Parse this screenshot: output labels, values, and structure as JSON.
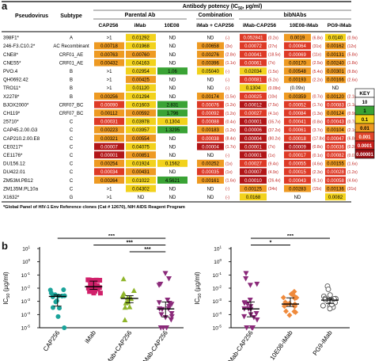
{
  "panel_a": {
    "label": "a",
    "header": {
      "pseudovirus": "Pseudovirus",
      "subtype": "Subtype",
      "potency": "Antibody potency (IC",
      "potency_sub": "50",
      "potency_end": ", µg/ml)",
      "group_parental": "Parental Ab",
      "group_combination": "Combination",
      "group_bibnabs": "bibNAbs",
      "cols": [
        "CAP256",
        "iMab",
        "10E08",
        "iMab + CAP256",
        "iMab-CAP256",
        "10E08-iMab",
        "PG9-iMab"
      ]
    },
    "rows": [
      {
        "virus": "398F1*",
        "subtype": "A",
        "v": [
          ">1",
          "0.01292",
          "ND",
          "ND",
          "0.052841",
          "0.0019",
          "0.0140"
        ],
        "f": [
          "",
          "",
          "",
          "(-)",
          "(0.2x)",
          "(6.8x)",
          "(0.9x)"
        ],
        "c": [
          "w",
          "y",
          "w",
          "w",
          "r",
          "o",
          "y"
        ]
      },
      {
        "virus": "246-F3.C10.2*",
        "subtype": "AC Recombinant",
        "v": [
          "0.00718",
          "0.01968",
          "ND",
          "0.00658",
          "0.00072",
          "0.00064",
          "0.00162"
        ],
        "f": [
          "",
          "",
          "",
          "(3x)",
          "(27x)",
          "(31x)",
          "(12x)"
        ],
        "c": [
          "o",
          "y",
          "w",
          "o",
          "r",
          "r",
          "o"
        ]
      },
      {
        "virus": "CNE8*",
        "subtype": "CRF01_AE",
        "v": [
          "0.00763",
          "0.00760",
          "ND",
          "0.00276",
          "0.00041",
          "0.00069",
          "0.00131"
        ],
        "f": [
          "",
          "",
          "",
          "(2.8x)",
          "(18.5x)",
          "(11x)",
          "(5.8x)"
        ],
        "c": [
          "o",
          "o",
          "w",
          "o",
          "r",
          "r",
          "o"
        ]
      },
      {
        "virus": "CNE55*",
        "subtype": "CRF01_AE",
        "v": [
          "0.00432",
          "0.04163",
          "ND",
          "0.00396",
          "0.00061",
          "0.00170",
          "0.00240"
        ],
        "f": [
          "",
          "",
          "",
          "(1.1x)",
          "(7x)",
          "(2.5x)",
          "(1.8x)"
        ],
        "c": [
          "o",
          "y",
          "w",
          "o",
          "r",
          "o",
          "o"
        ]
      },
      {
        "virus": "PVO.4",
        "subtype": "B",
        "v": [
          ">1",
          "0.02954",
          "1.06",
          "0.05040",
          "0.02034",
          "0.00548",
          "0.00301"
        ],
        "f": [
          "",
          "",
          "",
          "(-)",
          "(1.5x)",
          "(5.4x)",
          "(9.8x)"
        ],
        "c": [
          "w",
          "y",
          "g",
          "y",
          "y",
          "o",
          "o"
        ]
      },
      {
        "virus": "QH0692.42",
        "subtype": "B",
        "v": [
          ">1",
          "0.00425",
          "ND",
          "ND",
          "0.00081",
          "0.00193",
          "0.00166"
        ],
        "f": [
          "",
          "",
          "",
          "(-)",
          "(5.2x)",
          "(2.2x)",
          "(2.6x)"
        ],
        "c": [
          "w",
          "o",
          "w",
          "w",
          "r",
          "o",
          "o"
        ]
      },
      {
        "virus": "TRO11*",
        "subtype": "B",
        "v": [
          ">1",
          "0.01120",
          "ND",
          "ND",
          "0.1304",
          "(0.09x)",
          "ND"
        ],
        "f": [
          "",
          "",
          "",
          "(-)",
          "(0.09x)",
          "",
          ""
        ],
        "c": [
          "w",
          "y",
          "w",
          "w",
          "y",
          "w",
          "w"
        ]
      },
      {
        "virus": "X2278*",
        "subtype": "B",
        "v": [
          "0.00256",
          "0.01294",
          "ND",
          "0.00174",
          "0.00025",
          "0.00359",
          "0.00120"
        ],
        "f": [
          "",
          "",
          "",
          "(1.5x)",
          "(10x)",
          "(0.7x)",
          "(2.1x)"
        ],
        "c": [
          "o",
          "y",
          "w",
          "o",
          "r",
          "o",
          "o"
        ]
      },
      {
        "virus": "BJOX2000*",
        "subtype": "CRF07_BC",
        "v": [
          "0.00090",
          "0.01603",
          "2.831",
          "0.00076",
          "0.00012",
          "0.00052",
          "0.00083"
        ],
        "f": [
          "",
          "",
          "",
          "(1.2x)",
          "(7.5x)",
          "(1.7x)",
          "(1.1x)"
        ],
        "c": [
          "r",
          "y",
          "g",
          "r",
          "dr",
          "r",
          "r"
        ]
      },
      {
        "virus": "CH119*",
        "subtype": "CRF07_BC",
        "v": [
          "0.00112",
          "0.00592",
          "1.796",
          "0.00092",
          "0.00027",
          "0.00084",
          "0.00124"
        ],
        "f": [
          "",
          "",
          "",
          "(1.2x)",
          "(4.1x)",
          "(1.3x)",
          "(0.9x)"
        ],
        "c": [
          "o",
          "o",
          "g",
          "r",
          "r",
          "r",
          "o"
        ]
      },
      {
        "virus": "25710*",
        "subtype": "C",
        "v": [
          "0.00031",
          "0.03978",
          "0.1304",
          "0.00088",
          "0.00001",
          "0.00041",
          "0.00043"
        ],
        "f": [
          "",
          "",
          "",
          "(0.4x)",
          "(35.7x)",
          "(0.8x)",
          "(0.7x)"
        ],
        "c": [
          "r",
          "y",
          "y",
          "r",
          "dr",
          "r",
          "r"
        ]
      },
      {
        "virus": "CAP45.2.00.G3",
        "subtype": "C",
        "v": [
          "0.00223",
          "0.03957",
          "1.3295",
          "0.00183",
          "0.00006",
          "0.00061",
          "0.00104"
        ],
        "f": [
          "",
          "",
          "",
          "(1.2x)",
          "(37.2x)",
          "(3.7x)",
          "(2.1x)"
        ],
        "c": [
          "o",
          "y",
          "g",
          "o",
          "dr",
          "r",
          "o"
        ]
      },
      {
        "virus": "CAP210.2.00.E8",
        "subtype": "C",
        "v": [
          "0.00321",
          "0.00554",
          "ND",
          "0.00038",
          "0.00004",
          "0.00018",
          "0.00047"
        ],
        "f": [
          "",
          "",
          "",
          "(8.4x)",
          "(80.2x)",
          "(17.8x)",
          "(6.8x)"
        ],
        "c": [
          "o",
          "o",
          "w",
          "r",
          "dr",
          "r",
          "r"
        ]
      },
      {
        "virus": "CE0217*",
        "subtype": "C",
        "v": [
          "0.00007",
          "0.04075",
          "ND",
          "0.00004",
          "0.00001",
          "0.00009",
          "0.00036"
        ],
        "f": [
          "",
          "",
          "",
          "(1.7x)",
          "(7x)",
          "(0.8x)",
          "(0.2x)"
        ],
        "c": [
          "dr",
          "y",
          "w",
          "dr",
          "dr",
          "dr",
          "r"
        ]
      },
      {
        "virus": "CE1176*",
        "subtype": "C",
        "v": [
          "0.00001",
          "0.00851",
          "ND",
          "ND",
          "0.00001",
          "0.00017",
          "0.00082"
        ],
        "f": [
          "",
          "",
          "",
          "(-)",
          "(1x)",
          "(0.1x)",
          "(0.01x)"
        ],
        "c": [
          "dr",
          "o",
          "w",
          "w",
          "dr",
          "r",
          "r"
        ]
      },
      {
        "virus": "DU156.12",
        "subtype": "C",
        "v": [
          "0.00254",
          "0.01924",
          "0.1562",
          "0.00252",
          "0.00027",
          "0.00055",
          "0.00155"
        ],
        "f": [
          "",
          "",
          "",
          "(1x)",
          "(9.4x)",
          "(4.6x)",
          "(1.6x)"
        ],
        "c": [
          "o",
          "y",
          "y",
          "o",
          "r",
          "r",
          "o"
        ]
      },
      {
        "virus": "DU422.01",
        "subtype": "C",
        "v": [
          "0.00034",
          "0.00431",
          "ND",
          "0.00035",
          "0.00007",
          "0.00015",
          "0.00028"
        ],
        "f": [
          "",
          "",
          "",
          "(1x)",
          "(4.9x)",
          "(2.3x)",
          "(1.2x)"
        ],
        "c": [
          "r",
          "o",
          "w",
          "r",
          "dr",
          "r",
          "r"
        ]
      },
      {
        "virus": "ZM53M.PB12",
        "subtype": "C",
        "v": [
          "0.00264",
          "0.01022",
          "4.5621",
          "0.00161",
          "0.00010",
          "0.00043",
          "0.00058"
        ],
        "f": [
          "",
          "",
          "",
          "(1.6x)",
          "(26.4x)",
          "(6.1x)",
          "(4.6x)"
        ],
        "c": [
          "o",
          "y",
          "g",
          "o",
          "dr",
          "r",
          "r"
        ]
      },
      {
        "virus": "ZM135M.PL10a",
        "subtype": "C",
        "v": [
          ">1",
          "0.04302",
          "ND",
          "ND",
          "0.00125",
          "0.00283",
          "0.00136"
        ],
        "f": [
          "",
          "",
          "",
          "(-)",
          "(34x)",
          "(15x)",
          "(31x)"
        ],
        "c": [
          "w",
          "y",
          "w",
          "w",
          "o",
          "o",
          "o"
        ]
      },
      {
        "virus": "X1632*",
        "subtype": "G",
        "v": [
          ">1",
          "ND",
          "ND",
          "ND",
          "0.0168",
          "ND",
          "0.0082"
        ],
        "f": [
          "",
          "",
          "",
          "(-)",
          "",
          "",
          ""
        ],
        "c": [
          "w",
          "w",
          "w",
          "w",
          "y",
          "w",
          "y"
        ]
      }
    ],
    "footnote": "*Global Panel of HIV-1 Env Reference clones (Cat # 12670), NIH AIDS Reagent Program",
    "key": {
      "title": "KEY",
      "items": [
        {
          "label": "10",
          "color": "#ffffff"
        },
        {
          "label": "1",
          "color": "#3aa335"
        },
        {
          "label": "0.1",
          "color": "#f2d21c"
        },
        {
          "label": "0.01",
          "color": "#ee9a22"
        },
        {
          "label": "0.001",
          "color": "#e2462a"
        },
        {
          "label": "0.0001",
          "color": "#c8201c"
        },
        {
          "label": "0.00001",
          "color": "#9b1015"
        }
      ]
    },
    "colors": {
      "w": "#ffffff",
      "g": "#3aa335",
      "y": "#f2d21c",
      "o": "#ee9a22",
      "r": "#de3a26",
      "dr": "#b21618"
    }
  },
  "panel_b": {
    "label": "b",
    "ylabel_main": "IC",
    "ylabel_sub": "50",
    "ylabel_end": " (µg/ml)",
    "ytick_base": "10",
    "ytick_exps": [
      "1",
      "0",
      "-1",
      "-2",
      "-3",
      "-4",
      "-5"
    ]
  },
  "chart_data": [
    {
      "type": "scatter",
      "scale": "log",
      "ylim": [
        1e-05,
        10
      ],
      "categories": [
        "CAP256",
        "iMab",
        "iMab+CAP256",
        "iMab-CAP256"
      ],
      "series_colors": [
        "#1aa39a",
        "#d0206a",
        "#8fb52a",
        "#8b2a7a"
      ],
      "markers": [
        "circle",
        "square",
        "triangle-up",
        "triangle-down"
      ],
      "values": [
        [
          0.00718,
          0.00763,
          0.00432,
          0.00256,
          0.0009,
          0.00112,
          0.00031,
          0.00223,
          0.00321,
          7e-05,
          1e-05,
          0.00254,
          0.00034,
          0.00264
        ],
        [
          0.01292,
          0.01968,
          0.0076,
          0.04163,
          0.02954,
          0.00425,
          0.0112,
          0.01294,
          0.01603,
          0.00592,
          0.03978,
          0.03957,
          0.00554,
          0.04075,
          0.00851,
          0.01924,
          0.00431,
          0.01022,
          0.04302
        ],
        [
          0.00658,
          0.00276,
          0.00396,
          0.0504,
          0.00174,
          0.00076,
          0.00092,
          0.00088,
          0.00183,
          0.00038,
          4e-05,
          0.00252,
          0.00035,
          0.00161
        ],
        [
          0.05284,
          0.00072,
          0.00041,
          0.00061,
          0.02034,
          0.00081,
          0.1304,
          0.00025,
          0.00012,
          0.00027,
          1e-05,
          6e-05,
          4e-05,
          1e-05,
          1e-05,
          0.00027,
          7e-05,
          0.0001,
          0.00125,
          0.0168
        ]
      ],
      "significance": [
        {
          "from": 0,
          "to": 3,
          "label": "***"
        },
        {
          "from": 1,
          "to": 3,
          "label": "***"
        },
        {
          "from": 2,
          "to": 3,
          "label": "***"
        }
      ]
    },
    {
      "type": "scatter",
      "scale": "log",
      "ylim": [
        1e-05,
        10
      ],
      "categories": [
        "iMab-CAP256",
        "10E08-iMab",
        "PG9-iMab"
      ],
      "series_colors": [
        "#8b2a7a",
        "#ef8a3c",
        "#555555"
      ],
      "markers": [
        "triangle-down",
        "diamond",
        "circle-open"
      ],
      "values": [
        [
          0.05284,
          0.00072,
          0.00041,
          0.00061,
          0.02034,
          0.00081,
          0.1304,
          0.00025,
          0.00012,
          0.00027,
          1e-05,
          6e-05,
          4e-05,
          1e-05,
          1e-05,
          0.00027,
          7e-05,
          0.0001,
          0.00125,
          0.0168
        ],
        [
          0.0019,
          0.00064,
          0.00069,
          0.0017,
          0.00548,
          0.00193,
          0.00359,
          0.00052,
          0.00084,
          0.00041,
          0.00061,
          0.00018,
          9e-05,
          0.00017,
          0.00055,
          0.00015,
          0.00043,
          0.00283
        ],
        [
          0.014,
          0.00162,
          0.00131,
          0.0024,
          0.00301,
          0.00166,
          0.0012,
          0.00083,
          0.00124,
          0.00043,
          0.00104,
          0.00047,
          0.00036,
          0.00082,
          0.00155,
          0.00028,
          0.00058,
          0.00136,
          0.0082
        ]
      ],
      "significance": [
        {
          "from": 0,
          "to": 2,
          "label": "***"
        },
        {
          "from": 0,
          "to": 1,
          "label": "*"
        }
      ]
    }
  ]
}
